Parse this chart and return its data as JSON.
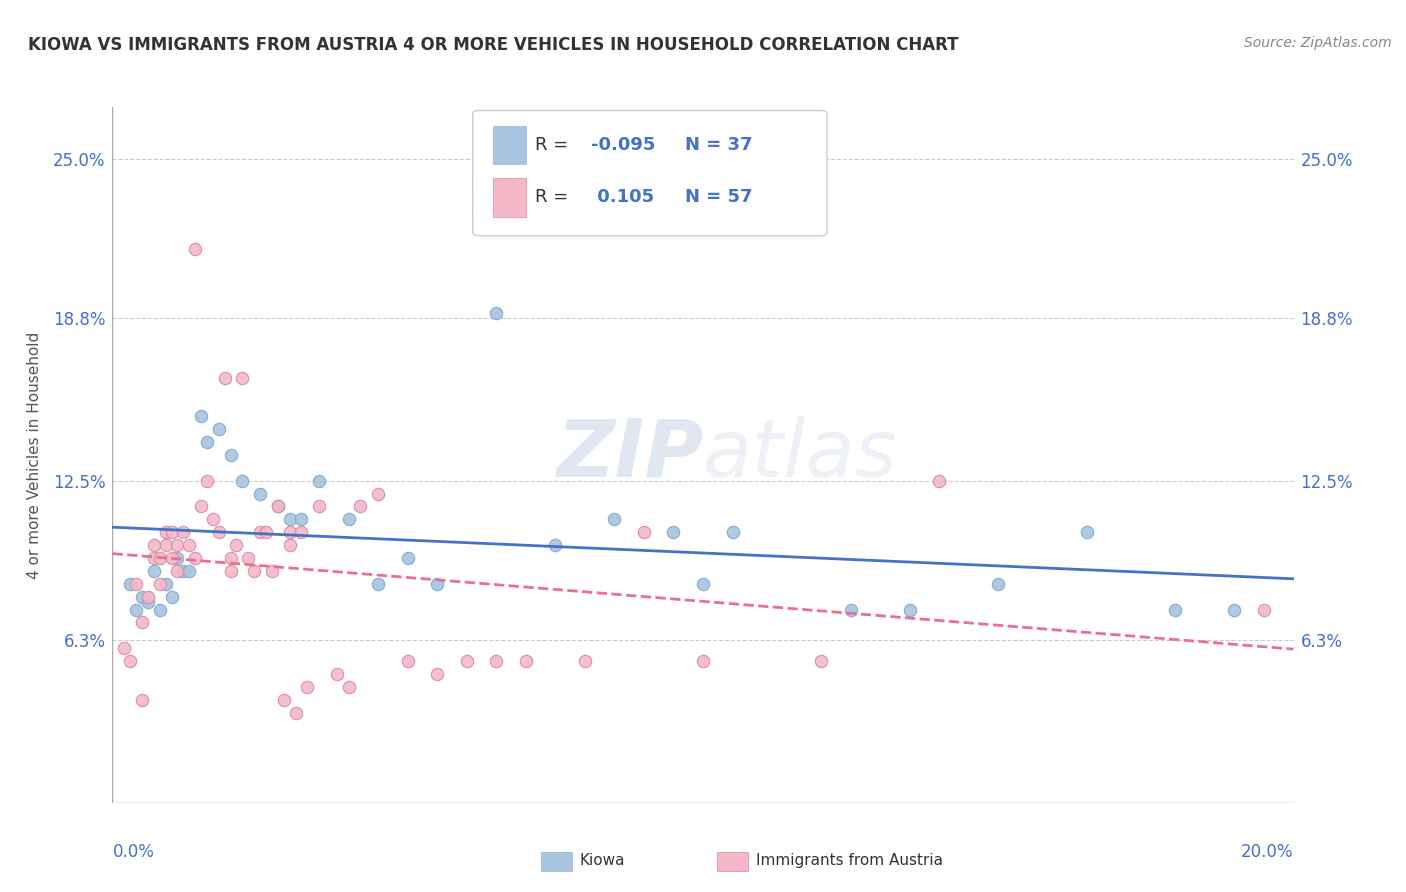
{
  "title": "KIOWA VS IMMIGRANTS FROM AUSTRIA 4 OR MORE VEHICLES IN HOUSEHOLD CORRELATION CHART",
  "source": "Source: ZipAtlas.com",
  "ylabel": "4 or more Vehicles in Household",
  "ytick_values": [
    6.3,
    12.5,
    18.8,
    25.0
  ],
  "xmin": 0.0,
  "xmax": 20.0,
  "ymin": 0.0,
  "ymax": 27.0,
  "blue_color": "#a8c4e0",
  "pink_color": "#f4b8c8",
  "blue_line_color": "#4472c4",
  "pink_line_color": "#e87090",
  "text_color": "#4472c4",
  "label_color": "#333333",
  "watermark": "ZIPatlas",
  "watermark_zip": "ZIP",
  "watermark_atlas": "atlas",
  "blue_x": [
    0.3,
    0.4,
    0.5,
    0.6,
    0.7,
    0.8,
    0.9,
    1.0,
    1.1,
    1.2,
    1.3,
    1.5,
    1.8,
    2.0,
    2.2,
    2.5,
    2.8,
    3.0,
    3.2,
    3.5,
    4.0,
    4.5,
    5.0,
    5.5,
    6.5,
    7.5,
    8.5,
    9.5,
    10.0,
    10.5,
    12.5,
    13.5,
    15.0,
    16.5,
    18.0,
    19.0,
    1.6
  ],
  "blue_y": [
    8.5,
    7.5,
    8.0,
    7.8,
    9.0,
    7.5,
    8.5,
    8.0,
    9.5,
    9.0,
    9.0,
    15.0,
    14.5,
    13.5,
    12.5,
    12.0,
    11.5,
    11.0,
    11.0,
    12.5,
    11.0,
    8.5,
    9.5,
    8.5,
    19.0,
    10.0,
    11.0,
    10.5,
    8.5,
    10.5,
    7.5,
    7.5,
    8.5,
    10.5,
    7.5,
    7.5,
    14.0
  ],
  "pink_x": [
    0.2,
    0.3,
    0.4,
    0.5,
    0.5,
    0.6,
    0.7,
    0.7,
    0.8,
    0.8,
    0.9,
    0.9,
    1.0,
    1.0,
    1.1,
    1.1,
    1.2,
    1.3,
    1.4,
    1.4,
    1.5,
    1.6,
    1.7,
    1.8,
    1.9,
    2.0,
    2.0,
    2.1,
    2.2,
    2.3,
    2.4,
    2.5,
    2.6,
    2.7,
    2.8,
    2.9,
    3.0,
    3.0,
    3.1,
    3.2,
    3.3,
    3.5,
    3.8,
    4.0,
    4.2,
    4.5,
    5.0,
    5.5,
    6.0,
    6.5,
    7.0,
    8.0,
    9.0,
    10.0,
    12.0,
    14.0,
    19.5
  ],
  "pink_y": [
    6.0,
    5.5,
    8.5,
    7.0,
    4.0,
    8.0,
    10.0,
    9.5,
    9.5,
    8.5,
    10.0,
    10.5,
    10.5,
    9.5,
    9.0,
    10.0,
    10.5,
    10.0,
    9.5,
    21.5,
    11.5,
    12.5,
    11.0,
    10.5,
    16.5,
    9.5,
    9.0,
    10.0,
    16.5,
    9.5,
    9.0,
    10.5,
    10.5,
    9.0,
    11.5,
    4.0,
    10.5,
    10.0,
    3.5,
    10.5,
    4.5,
    11.5,
    5.0,
    4.5,
    11.5,
    12.0,
    5.5,
    5.0,
    5.5,
    5.5,
    5.5,
    5.5,
    10.5,
    5.5,
    5.5,
    12.5,
    7.5
  ]
}
